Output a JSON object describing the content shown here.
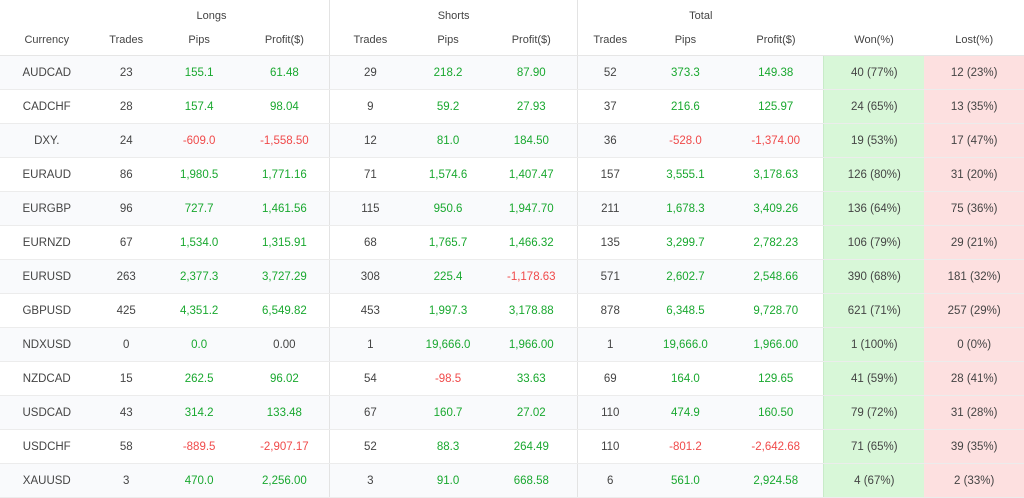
{
  "groups": {
    "longs": "Longs",
    "shorts": "Shorts",
    "total": "Total"
  },
  "headers": {
    "currency": "Currency",
    "trades": "Trades",
    "pips": "Pips",
    "profit": "Profit($)",
    "won": "Won(%)",
    "lost": "Lost(%)"
  },
  "colors": {
    "positive": "#19a82f",
    "negative": "#f04a4a",
    "won_bg": "#d8f7d8",
    "lost_bg": "#fde0e0"
  },
  "rows": [
    {
      "currency": "AUDCAD",
      "l_trades": "23",
      "l_pips": "155.1",
      "l_profit": "61.48",
      "s_trades": "29",
      "s_pips": "218.2",
      "s_profit": "87.90",
      "t_trades": "52",
      "t_pips": "373.3",
      "t_profit": "149.38",
      "won": "40 (77%)",
      "lost": "12 (23%)"
    },
    {
      "currency": "CADCHF",
      "l_trades": "28",
      "l_pips": "157.4",
      "l_profit": "98.04",
      "s_trades": "9",
      "s_pips": "59.2",
      "s_profit": "27.93",
      "t_trades": "37",
      "t_pips": "216.6",
      "t_profit": "125.97",
      "won": "24 (65%)",
      "lost": "13 (35%)"
    },
    {
      "currency": "DXY.",
      "l_trades": "24",
      "l_pips": "-609.0",
      "l_profit": "-1,558.50",
      "s_trades": "12",
      "s_pips": "81.0",
      "s_profit": "184.50",
      "t_trades": "36",
      "t_pips": "-528.0",
      "t_profit": "-1,374.00",
      "won": "19 (53%)",
      "lost": "17 (47%)"
    },
    {
      "currency": "EURAUD",
      "l_trades": "86",
      "l_pips": "1,980.5",
      "l_profit": "1,771.16",
      "s_trades": "71",
      "s_pips": "1,574.6",
      "s_profit": "1,407.47",
      "t_trades": "157",
      "t_pips": "3,555.1",
      "t_profit": "3,178.63",
      "won": "126 (80%)",
      "lost": "31 (20%)"
    },
    {
      "currency": "EURGBP",
      "l_trades": "96",
      "l_pips": "727.7",
      "l_profit": "1,461.56",
      "s_trades": "115",
      "s_pips": "950.6",
      "s_profit": "1,947.70",
      "t_trades": "211",
      "t_pips": "1,678.3",
      "t_profit": "3,409.26",
      "won": "136 (64%)",
      "lost": "75 (36%)"
    },
    {
      "currency": "EURNZD",
      "l_trades": "67",
      "l_pips": "1,534.0",
      "l_profit": "1,315.91",
      "s_trades": "68",
      "s_pips": "1,765.7",
      "s_profit": "1,466.32",
      "t_trades": "135",
      "t_pips": "3,299.7",
      "t_profit": "2,782.23",
      "won": "106 (79%)",
      "lost": "29 (21%)"
    },
    {
      "currency": "EURUSD",
      "l_trades": "263",
      "l_pips": "2,377.3",
      "l_profit": "3,727.29",
      "s_trades": "308",
      "s_pips": "225.4",
      "s_profit": "-1,178.63",
      "t_trades": "571",
      "t_pips": "2,602.7",
      "t_profit": "2,548.66",
      "won": "390 (68%)",
      "lost": "181 (32%)"
    },
    {
      "currency": "GBPUSD",
      "l_trades": "425",
      "l_pips": "4,351.2",
      "l_profit": "6,549.82",
      "s_trades": "453",
      "s_pips": "1,997.3",
      "s_profit": "3,178.88",
      "t_trades": "878",
      "t_pips": "6,348.5",
      "t_profit": "9,728.70",
      "won": "621 (71%)",
      "lost": "257 (29%)"
    },
    {
      "currency": "NDXUSD",
      "l_trades": "0",
      "l_pips": "0.0",
      "l_profit": "0.00",
      "s_trades": "1",
      "s_pips": "19,666.0",
      "s_profit": "1,966.00",
      "t_trades": "1",
      "t_pips": "19,666.0",
      "t_profit": "1,966.00",
      "won": "1 (100%)",
      "lost": "0 (0%)"
    },
    {
      "currency": "NZDCAD",
      "l_trades": "15",
      "l_pips": "262.5",
      "l_profit": "96.02",
      "s_trades": "54",
      "s_pips": "-98.5",
      "s_profit": "33.63",
      "t_trades": "69",
      "t_pips": "164.0",
      "t_profit": "129.65",
      "won": "41 (59%)",
      "lost": "28 (41%)"
    },
    {
      "currency": "USDCAD",
      "l_trades": "43",
      "l_pips": "314.2",
      "l_profit": "133.48",
      "s_trades": "67",
      "s_pips": "160.7",
      "s_profit": "27.02",
      "t_trades": "110",
      "t_pips": "474.9",
      "t_profit": "160.50",
      "won": "79 (72%)",
      "lost": "31 (28%)"
    },
    {
      "currency": "USDCHF",
      "l_trades": "58",
      "l_pips": "-889.5",
      "l_profit": "-2,907.17",
      "s_trades": "52",
      "s_pips": "88.3",
      "s_profit": "264.49",
      "t_trades": "110",
      "t_pips": "-801.2",
      "t_profit": "-2,642.68",
      "won": "71 (65%)",
      "lost": "39 (35%)"
    },
    {
      "currency": "XAUUSD",
      "l_trades": "3",
      "l_pips": "470.0",
      "l_profit": "2,256.00",
      "s_trades": "3",
      "s_pips": "91.0",
      "s_profit": "668.58",
      "t_trades": "6",
      "t_pips": "561.0",
      "t_profit": "2,924.58",
      "won": "4 (67%)",
      "lost": "2 (33%)"
    }
  ]
}
